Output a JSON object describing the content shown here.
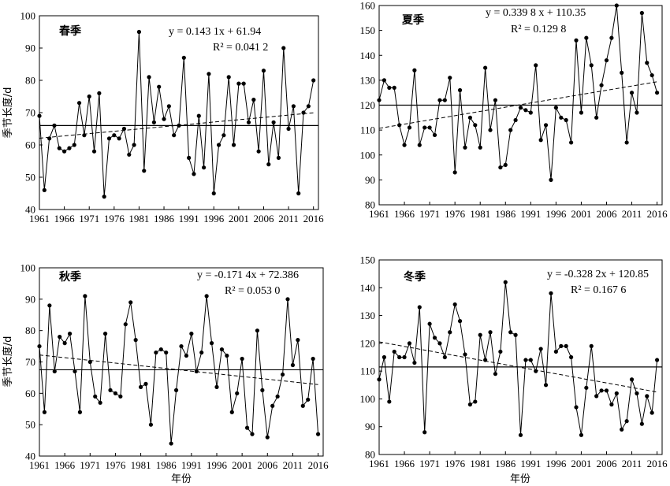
{
  "axis_labels": {
    "y": "季节长度/d",
    "x": "年份"
  },
  "chart_data": [
    {
      "type": "line",
      "season": "春季",
      "equation": "y = 0.143 1x + 61.94",
      "r2": "R² = 0.041 2",
      "ylim": [
        40,
        100
      ],
      "yticks": [
        40,
        50,
        60,
        70,
        80,
        90,
        100
      ],
      "xlim": [
        1961,
        2017
      ],
      "xticks": [
        "1961",
        "1966",
        "1971",
        "1976",
        "1981",
        "1986",
        "1991",
        "1996",
        "2001",
        "2006",
        "2011",
        "2016"
      ],
      "mean": 66,
      "trend": {
        "slope": 0.1431,
        "intercept": 61.94
      },
      "start_year": 1961,
      "values": [
        69,
        46,
        62,
        66,
        59,
        58,
        59,
        60,
        73,
        63,
        75,
        58,
        76,
        44,
        62,
        63,
        62,
        65,
        57,
        60,
        95,
        52,
        81,
        67,
        78,
        68,
        72,
        63,
        66,
        87,
        56,
        51,
        69,
        53,
        82,
        45,
        60,
        63,
        81,
        60,
        79,
        79,
        67,
        74,
        58,
        83,
        54,
        67,
        56,
        90,
        65,
        72,
        45,
        70,
        72,
        80
      ]
    },
    {
      "type": "line",
      "season": "夏季",
      "equation": "y = 0.339 8 x + 110.35",
      "r2": "R² = 0.129 8",
      "ylim": [
        80,
        160
      ],
      "yticks": [
        80,
        90,
        100,
        110,
        120,
        130,
        140,
        150,
        160
      ],
      "xlim": [
        1961,
        2017
      ],
      "xticks": [
        "1961",
        "1966",
        "1971",
        "1976",
        "1981",
        "1986",
        "1991",
        "1996",
        "2001",
        "2006",
        "2011",
        "2016"
      ],
      "mean": 120,
      "trend": {
        "slope": 0.3398,
        "intercept": 110.35
      },
      "start_year": 1961,
      "values": [
        122,
        130,
        127,
        127,
        112,
        104,
        111,
        134,
        104,
        111,
        111,
        108,
        122,
        122,
        131,
        93,
        126,
        103,
        115,
        112,
        103,
        135,
        110,
        122,
        95,
        96,
        110,
        114,
        119,
        118,
        117,
        136,
        106,
        112,
        90,
        119,
        115,
        114,
        105,
        146,
        117,
        147,
        136,
        115,
        128,
        138,
        147,
        160,
        133,
        105,
        125,
        117,
        157,
        137,
        132,
        125
      ]
    },
    {
      "type": "line",
      "season": "秋季",
      "equation": "y = -0.171 4x + 72.386",
      "r2": "R² = 0.053 0",
      "ylim": [
        40,
        100
      ],
      "yticks": [
        40,
        50,
        60,
        70,
        80,
        90,
        100
      ],
      "xlim": [
        1961,
        2017
      ],
      "xticks": [
        "1961",
        "1966",
        "1971",
        "1976",
        "1981",
        "1986",
        "1991",
        "1996",
        "2001",
        "2006",
        "2011",
        "2016"
      ],
      "mean": 67.5,
      "trend": {
        "slope": -0.1714,
        "intercept": 72.386
      },
      "start_year": 1961,
      "values": [
        75,
        54,
        88,
        67,
        78,
        76,
        79,
        67,
        54,
        91,
        70,
        59,
        57,
        79,
        61,
        60,
        59,
        82,
        89,
        77,
        62,
        63,
        50,
        73,
        74,
        73,
        44,
        61,
        75,
        72,
        79,
        67,
        73,
        91,
        76,
        62,
        74,
        72,
        54,
        60,
        71,
        49,
        47,
        80,
        61,
        46,
        56,
        59,
        66,
        90,
        69,
        77,
        56,
        58,
        71,
        47
      ]
    },
    {
      "type": "line",
      "season": "冬季",
      "equation": "y = -0.328 2x + 120.85",
      "r2": "R² = 0.167 6",
      "ylim": [
        80,
        150
      ],
      "yticks": [
        80,
        90,
        100,
        110,
        120,
        130,
        140,
        150
      ],
      "xlim": [
        1961,
        2017
      ],
      "xticks": [
        "1961",
        "1966",
        "1971",
        "1976",
        "1981",
        "1986",
        "1991",
        "1996",
        "2001",
        "2006",
        "2011",
        "2016"
      ],
      "mean": 111.5,
      "trend": {
        "slope": -0.3282,
        "intercept": 120.85
      },
      "start_year": 1961,
      "values": [
        107,
        115,
        99,
        117,
        115,
        115,
        120,
        113,
        133,
        88,
        127,
        122,
        120,
        115,
        124,
        134,
        128,
        116,
        98,
        99,
        123,
        114,
        124,
        109,
        117,
        142,
        124,
        123,
        87,
        114,
        114,
        110,
        118,
        105,
        138,
        117,
        119,
        119,
        115,
        97,
        87,
        104,
        119,
        101,
        103,
        103,
        98,
        102,
        89,
        92,
        107,
        102,
        91,
        101,
        95,
        114
      ]
    }
  ]
}
